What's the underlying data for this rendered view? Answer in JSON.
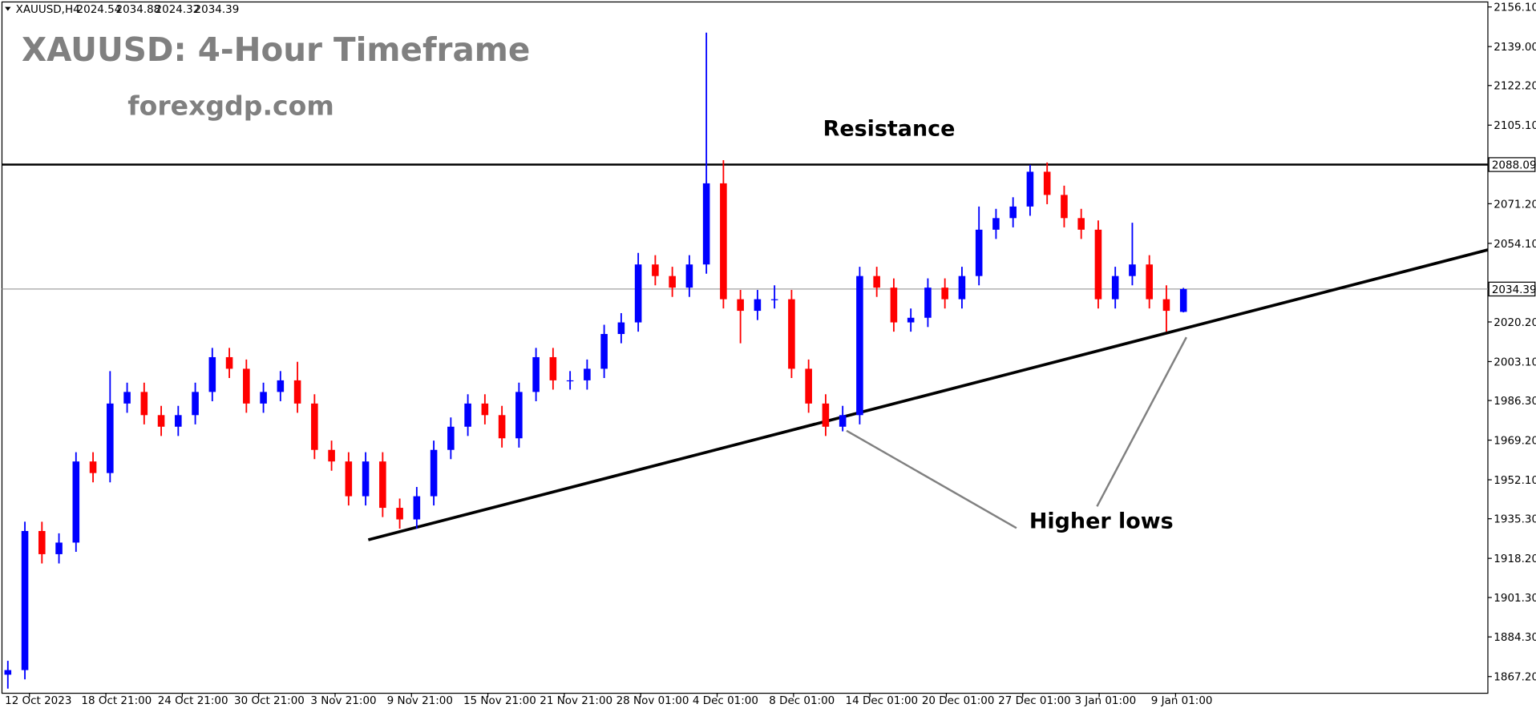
{
  "chart_data": {
    "type": "candlestick",
    "header": {
      "symbol": "XAUUSD,H4",
      "values": [
        2024.54,
        2034.88,
        2024.32,
        2034.39
      ]
    },
    "title": "XAUUSD: 4-Hour Timeframe",
    "subtitle": "forexgdp.com",
    "up_color": "#0000ff",
    "down_color": "#ff0000",
    "open": [
      1868,
      1870,
      1930,
      1920,
      1925,
      1960,
      1955,
      1985,
      1990,
      1980,
      1975,
      1980,
      1990,
      2005,
      2000,
      1985,
      1990,
      1995,
      1985,
      1965,
      1960,
      1945,
      1960,
      1940,
      1935,
      1945,
      1965,
      1975,
      1985,
      1980,
      1970,
      1990,
      2005,
      1995,
      1995,
      2000,
      2015,
      2020,
      2045,
      2040,
      2035,
      2045,
      2080,
      2030,
      2025,
      2030,
      2030,
      2000,
      1985,
      1975,
      1980,
      2040,
      2035,
      2020,
      2022,
      2035,
      2030,
      2040,
      2060,
      2065,
      2070,
      2085,
      2075,
      2065,
      2060,
      2030,
      2040,
      2045,
      2030,
      2024.54
    ],
    "high": [
      1874,
      1934,
      1934,
      1929,
      1964,
      1964,
      1999,
      1994,
      1994,
      1984,
      1984,
      1994,
      2009,
      2009,
      2004,
      1994,
      1999,
      2003,
      1989,
      1969,
      1964,
      1964,
      1964,
      1944,
      1949,
      1969,
      1979,
      1989,
      1989,
      1984,
      1994,
      2009,
      2009,
      1999,
      2004,
      2019,
      2024,
      2050,
      2049,
      2044,
      2049,
      2145,
      2090,
      2034,
      2034,
      2036,
      2034,
      2004,
      1989,
      1984,
      2044,
      2044,
      2039,
      2026,
      2039,
      2039,
      2044,
      2070,
      2069,
      2074,
      2088,
      2089,
      2079,
      2069,
      2064,
      2044,
      2063,
      2049,
      2036,
      2034.88
    ],
    "low": [
      1862,
      1866,
      1916,
      1916,
      1921,
      1951,
      1951,
      1981,
      1976,
      1971,
      1971,
      1976,
      1986,
      1996,
      1981,
      1981,
      1986,
      1981,
      1961,
      1956,
      1941,
      1941,
      1936,
      1931,
      1931,
      1941,
      1961,
      1971,
      1976,
      1966,
      1966,
      1986,
      1991,
      1991,
      1991,
      1996,
      2011,
      2016,
      2036,
      2031,
      2031,
      2041,
      2026,
      2011,
      2021,
      2026,
      1996,
      1981,
      1971,
      1973,
      1976,
      2031,
      2016,
      2016,
      2018,
      2026,
      2026,
      2036,
      2056,
      2061,
      2066,
      2071,
      2061,
      2056,
      2026,
      2026,
      2036,
      2026,
      2016,
      2024.32
    ],
    "close": [
      1870,
      1930,
      1920,
      1925,
      1960,
      1955,
      1985,
      1990,
      1980,
      1975,
      1980,
      1990,
      2005,
      2000,
      1985,
      1990,
      1995,
      1985,
      1965,
      1960,
      1945,
      1960,
      1940,
      1935,
      1945,
      1965,
      1975,
      1985,
      1980,
      1970,
      1990,
      2005,
      1995,
      1995,
      2000,
      2015,
      2020,
      2045,
      2040,
      2035,
      2045,
      2080,
      2030,
      2025,
      2030,
      2030,
      2000,
      1985,
      1975,
      1980,
      2040,
      2035,
      2020,
      2022,
      2035,
      2030,
      2040,
      2060,
      2065,
      2070,
      2085,
      2075,
      2065,
      2060,
      2030,
      2040,
      2045,
      2030,
      2025,
      2034.39
    ],
    "x_labels": [
      "12 Oct 2023",
      "18 Oct 21:00",
      "24 Oct 21:00",
      "30 Oct 21:00",
      "3 Nov 21:00",
      "9 Nov 21:00",
      "15 Nov 21:00",
      "21 Nov 21:00",
      "28 Nov 01:00",
      "4 Dec 01:00",
      "8 Dec 01:00",
      "14 Dec 01:00",
      "20 Dec 01:00",
      "27 Dec 01:00",
      "3 Jan 01:00",
      "9 Jan 01:00"
    ],
    "ylim": [
      1860.0,
      2159.1
    ],
    "yticks": [
      {
        "value": 2156.1,
        "label": "2156.10"
      },
      {
        "value": 2139.0,
        "label": "2139.00"
      },
      {
        "value": 2122.2,
        "label": "2122.20"
      },
      {
        "value": 2105.1,
        "label": "2105.10"
      },
      {
        "value": 2071.2,
        "label": "2071.20"
      },
      {
        "value": 2054.1,
        "label": "2054.10"
      },
      {
        "value": 2020.2,
        "label": "2020.20"
      },
      {
        "value": 2003.1,
        "label": "2003.10"
      },
      {
        "value": 1986.3,
        "label": "1986.30"
      },
      {
        "value": 1969.2,
        "label": "1969.20"
      },
      {
        "value": 1952.1,
        "label": "1952.10"
      },
      {
        "value": 1935.3,
        "label": "1935.30"
      },
      {
        "value": 1918.2,
        "label": "1918.20"
      },
      {
        "value": 1901.3,
        "label": "1901.30"
      },
      {
        "value": 1884.3,
        "label": "1884.30"
      },
      {
        "value": 1867.2,
        "label": "1867.20"
      }
    ],
    "resistance": {
      "label": "Resistance",
      "value": 2088.09
    },
    "last_price": 2034.39,
    "support_line": {
      "label": "Higher lows",
      "from": 1926.2,
      "to": 2051.3
    }
  }
}
